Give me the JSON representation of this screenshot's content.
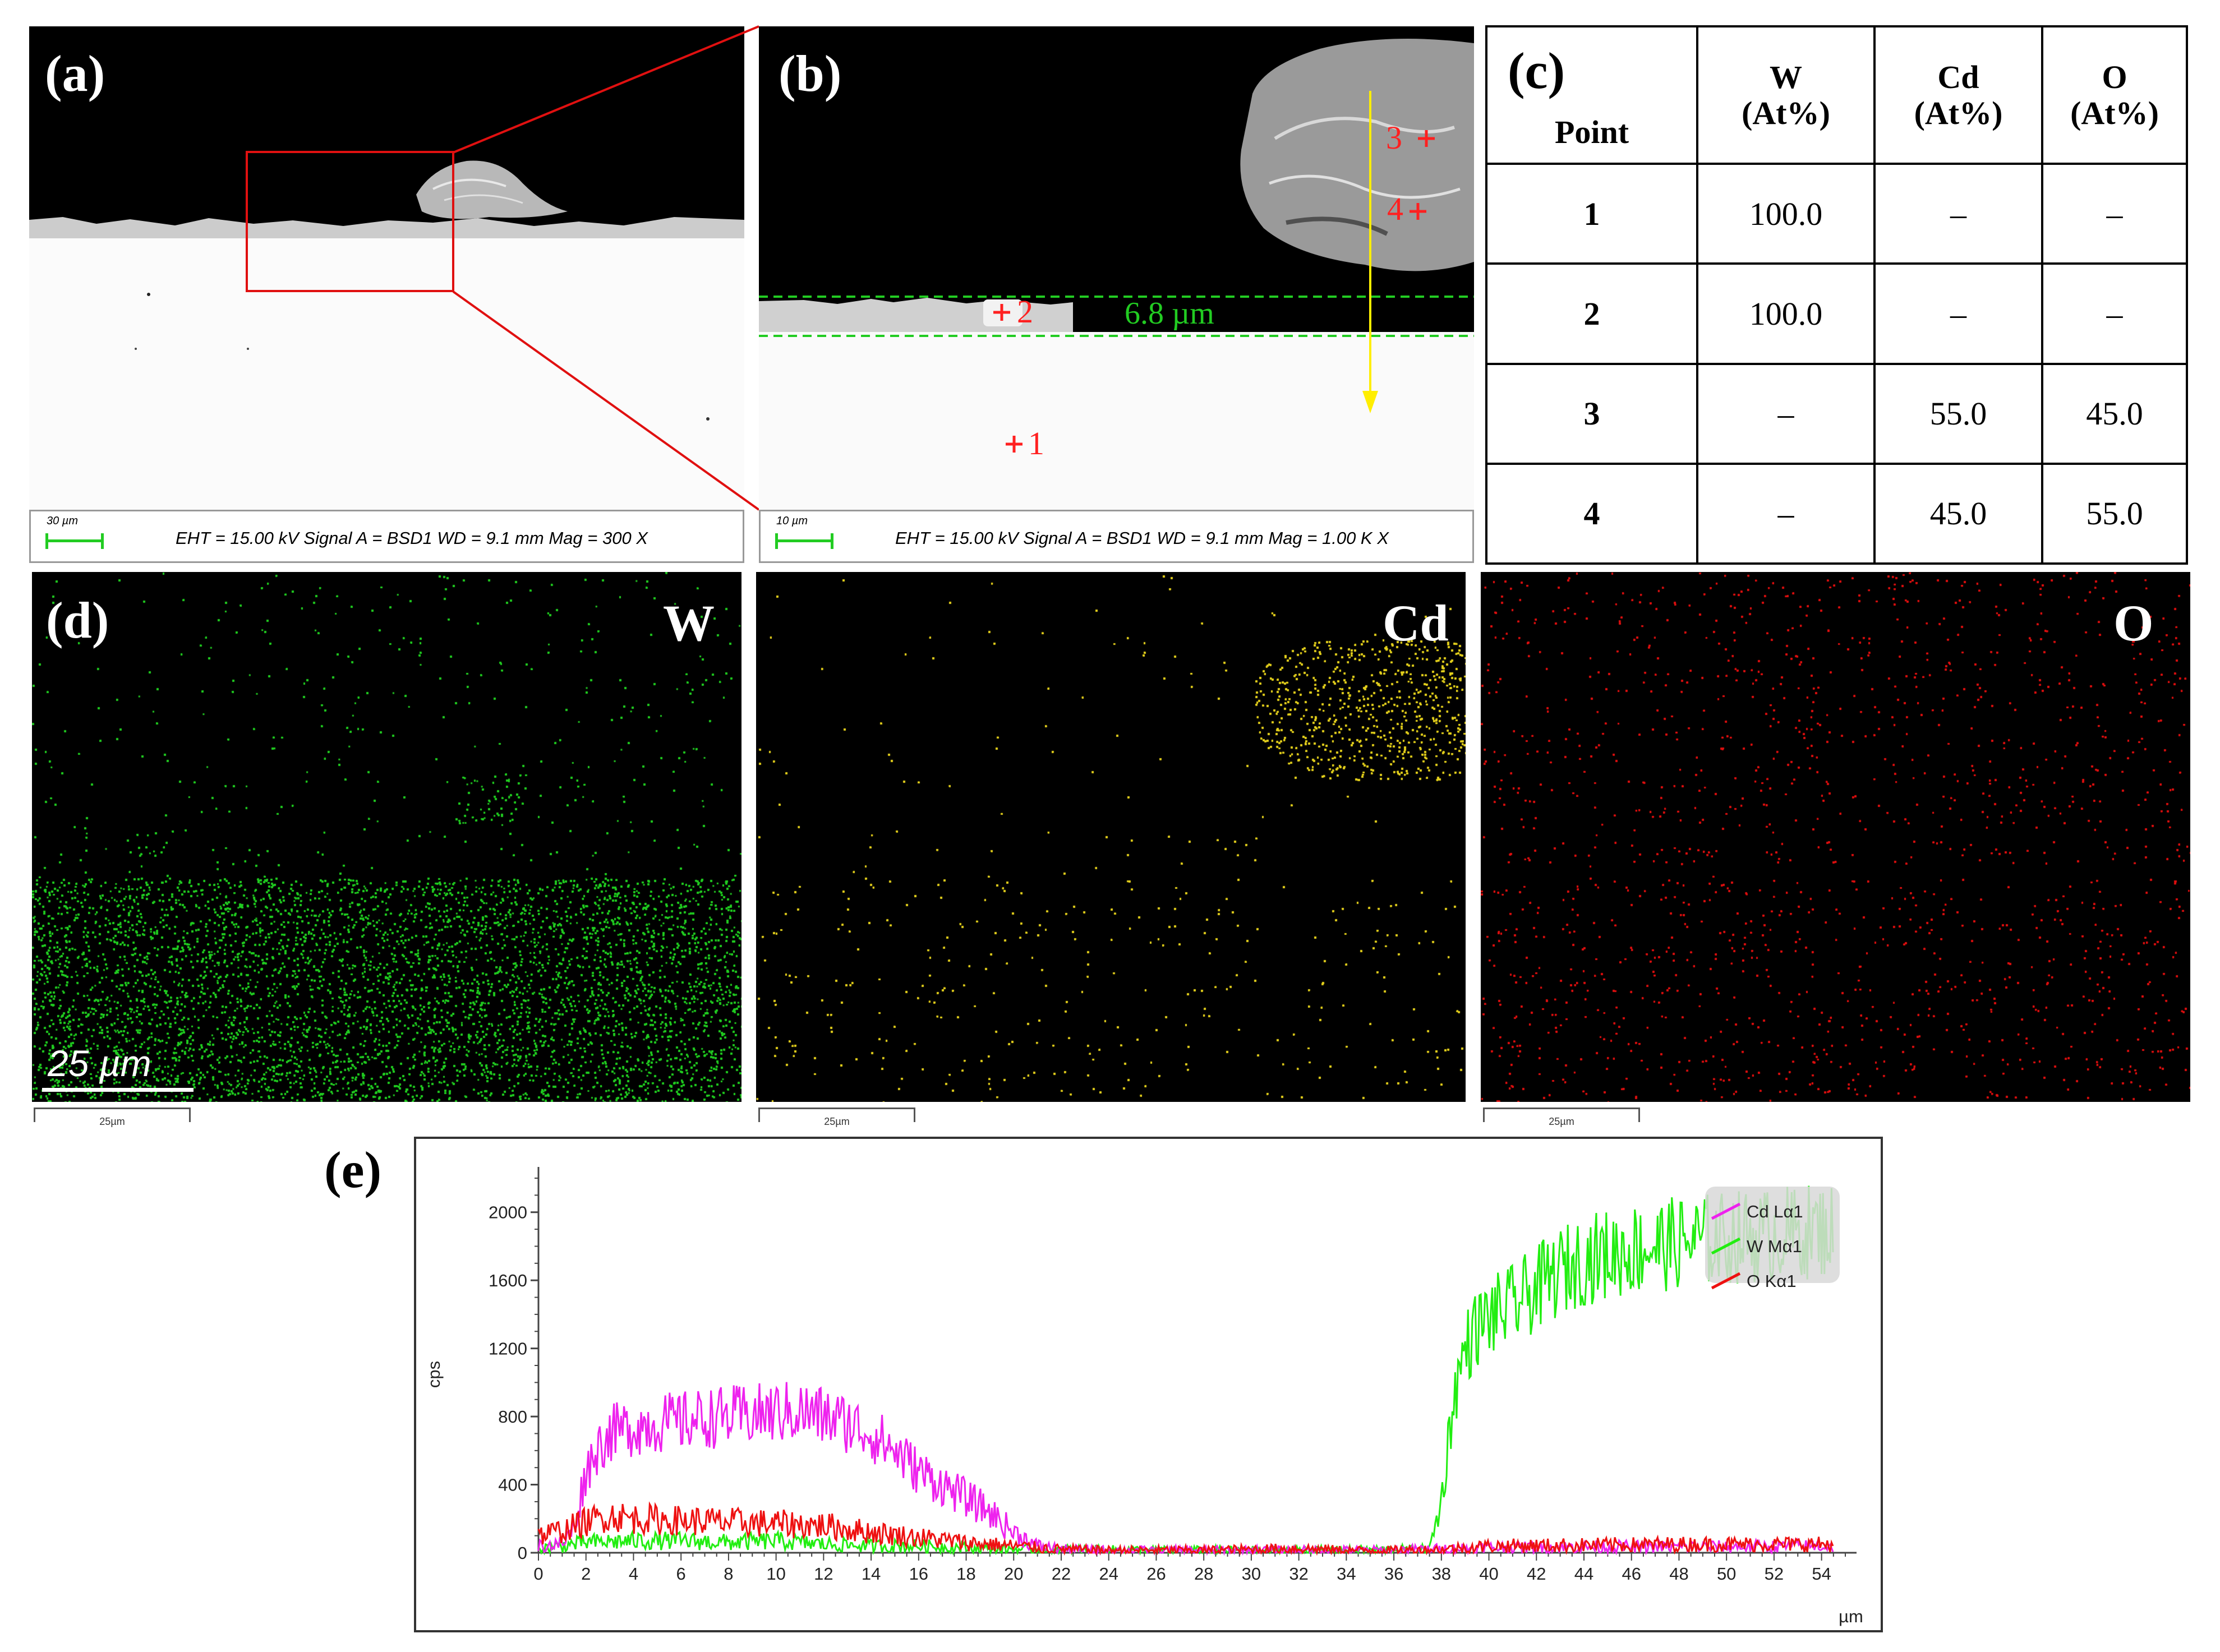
{
  "panel_labels": {
    "a": "(a)",
    "b": "(b)",
    "c": "(c)",
    "d": "(d)",
    "e": "(e)"
  },
  "panel_a": {
    "scale_label": "30 µm",
    "info": "EHT = 15.00 kV  Signal A = BSD1  WD = 9.1 mm Mag = 300 X"
  },
  "panel_b": {
    "scale_label": "10 µm",
    "info": "EHT = 15.00 kV  Signal A = BSD1  WD = 9.1 mm Mag = 1.00 K X",
    "thickness": "6.8 µm",
    "points": [
      {
        "label": "1"
      },
      {
        "label": "2"
      },
      {
        "label": "3"
      },
      {
        "label": "4"
      }
    ]
  },
  "table": {
    "headers": [
      {
        "l1": "Point",
        "l2": ""
      },
      {
        "l1": "W",
        "l2": "(At%)"
      },
      {
        "l1": "Cd",
        "l2": "(At%)"
      },
      {
        "l1": "O",
        "l2": "(At%)"
      }
    ],
    "rows": [
      [
        "1",
        "100.0",
        "–",
        "–"
      ],
      [
        "2",
        "100.0",
        "–",
        "–"
      ],
      [
        "3",
        "–",
        "55.0",
        "45.0"
      ],
      [
        "4",
        "–",
        "45.0",
        "55.0"
      ]
    ]
  },
  "maps": [
    {
      "element": "W",
      "color": "#22cc22"
    },
    {
      "element": "Cd",
      "color": "#e6d21e"
    },
    {
      "element": "O",
      "color": "#e01010"
    }
  ],
  "map_scale": "25 µm",
  "map_small_scale": "25µm",
  "colors": {
    "w": "#22ee11",
    "cd": "#ee22ee",
    "o": "#ee1111",
    "marker": "#ff2020",
    "line": "#ffee00",
    "layer": "#22cc22",
    "box": "#e01010"
  },
  "chart_data": {
    "type": "line",
    "xlabel": "µm",
    "ylabel": "cps",
    "xlim": [
      0,
      55
    ],
    "ylim": [
      0,
      2200
    ],
    "xticks": [
      0,
      2,
      4,
      6,
      8,
      10,
      12,
      14,
      16,
      18,
      20,
      22,
      24,
      26,
      28,
      30,
      32,
      34,
      36,
      38,
      40,
      42,
      44,
      46,
      48,
      50,
      52,
      54
    ],
    "yticks": [
      0,
      400,
      800,
      1200,
      1600,
      2000
    ],
    "legend_position": "top-right",
    "series": [
      {
        "name": "Cd Lα1",
        "color": "#ee22ee",
        "x": [
          0,
          1,
          1.5,
          2,
          2.5,
          3,
          4,
          5,
          6,
          7,
          8,
          9,
          10,
          11,
          12,
          13,
          14,
          15,
          16,
          17,
          18,
          19,
          20,
          21,
          22,
          24,
          30,
          36,
          40,
          45,
          50,
          54.5
        ],
        "y": [
          40,
          50,
          150,
          480,
          620,
          700,
          740,
          760,
          770,
          790,
          800,
          810,
          820,
          830,
          800,
          760,
          700,
          600,
          480,
          400,
          320,
          240,
          120,
          40,
          20,
          15,
          15,
          15,
          30,
          35,
          35,
          40
        ]
      },
      {
        "name": "W Mα1",
        "color": "#22ee11",
        "x": [
          0,
          2,
          4,
          6,
          8,
          10,
          12,
          14,
          16,
          18,
          20,
          22,
          26,
          30,
          34,
          37.5,
          38,
          38.5,
          39,
          39.5,
          40,
          41,
          42,
          43,
          44,
          46,
          48,
          50,
          52,
          54.5
        ],
        "y": [
          20,
          60,
          70,
          70,
          60,
          70,
          50,
          40,
          40,
          30,
          20,
          20,
          15,
          15,
          15,
          20,
          300,
          900,
          1200,
          1320,
          1380,
          1450,
          1550,
          1650,
          1720,
          1780,
          1820,
          1850,
          1870,
          1900
        ]
      },
      {
        "name": "O Kα1",
        "color": "#ee1111",
        "x": [
          0,
          1,
          2,
          3,
          4,
          6,
          8,
          10,
          12,
          14,
          16,
          18,
          20,
          22,
          24,
          28,
          32,
          34,
          36,
          38,
          40,
          44,
          48,
          52,
          54.5
        ],
        "y": [
          100,
          130,
          180,
          220,
          200,
          190,
          180,
          170,
          160,
          120,
          90,
          60,
          40,
          20,
          15,
          15,
          25,
          15,
          15,
          20,
          40,
          45,
          50,
          50,
          50
        ]
      }
    ]
  }
}
